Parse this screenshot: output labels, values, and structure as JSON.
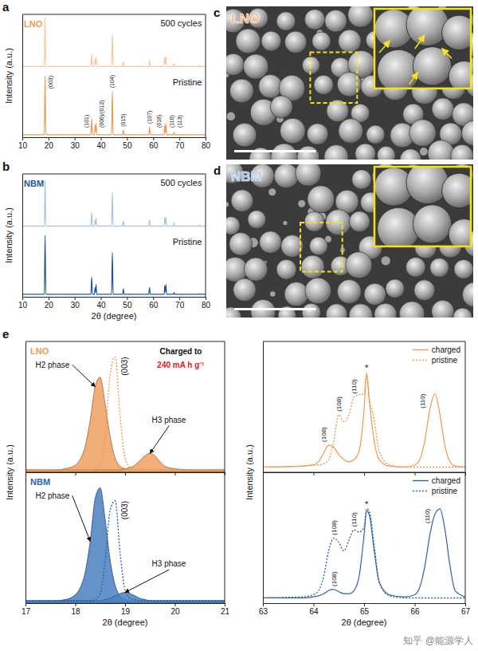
{
  "chart_data": [
    {
      "type": "line",
      "panel_label": "a",
      "title": "LNO",
      "ylabel": "Intensity (a.u.)",
      "x": [
        10,
        18.4,
        18.7,
        19.0,
        36.2,
        36.5,
        36.8,
        37.6,
        37.8,
        38.0,
        38.2,
        38.4,
        44.1,
        44.4,
        44.7,
        48.3,
        48.6,
        48.9,
        58.3,
        58.6,
        58.9,
        64.2,
        64.4,
        64.65,
        64.9,
        65.1,
        67.7,
        68.0,
        68.3,
        77.5,
        77.8,
        78.1,
        80
      ],
      "series": [
        {
          "name": "500 cycles",
          "color": "#f6c7a0",
          "values": [
            1.15,
            1.15,
            1.95,
            1.15,
            1.15,
            1.35,
            1.15,
            1.15,
            1.27,
            1.2,
            1.3,
            1.15,
            1.15,
            1.68,
            1.15,
            1.15,
            1.23,
            1.15,
            1.15,
            1.26,
            1.15,
            1.15,
            1.3,
            1.2,
            1.31,
            1.15,
            1.15,
            1.2,
            1.15,
            1.15,
            1.17,
            1.15,
            1.15
          ]
        },
        {
          "name": "Pristine",
          "color": "#ee9a52",
          "values": [
            0.04,
            0.04,
            1.0,
            0.04,
            0.04,
            0.3,
            0.04,
            0.04,
            0.2,
            0.1,
            0.22,
            0.04,
            0.04,
            0.75,
            0.04,
            0.04,
            0.12,
            0.04,
            0.04,
            0.17,
            0.04,
            0.04,
            0.2,
            0.08,
            0.21,
            0.04,
            0.04,
            0.08,
            0.04,
            0.04,
            0.05,
            0.04,
            0.04
          ]
        }
      ],
      "xlim": [
        10,
        80
      ],
      "xticks": [
        10,
        20,
        30,
        40,
        50,
        60,
        70,
        80
      ],
      "ylim": [
        0,
        2.0
      ],
      "tick_labels": "x",
      "annotations": [
        {
          "text": "(003)",
          "x": 18.7,
          "series": "Pristine"
        },
        {
          "text": "(101)",
          "x": 36.5,
          "series": "Pristine"
        },
        {
          "text": "(006)/(012)",
          "x": 38.2,
          "series": "Pristine"
        },
        {
          "text": "(104)",
          "x": 44.4,
          "series": "Pristine"
        },
        {
          "text": "(015)",
          "x": 48.6,
          "series": "Pristine"
        },
        {
          "text": "(107)",
          "x": 58.6,
          "series": "Pristine"
        },
        {
          "text": "(018)",
          "x": 64.4,
          "series": "Pristine"
        },
        {
          "text": "(110)",
          "x": 64.9,
          "series": "Pristine"
        },
        {
          "text": "(113)",
          "x": 68.0,
          "series": "Pristine"
        }
      ]
    },
    {
      "type": "line",
      "panel_label": "b",
      "title": "NBM",
      "ylabel": "Intensity (a.u.)",
      "xlabel": "2θ (degree)",
      "x": [
        10,
        18.4,
        18.7,
        19.0,
        36.2,
        36.5,
        36.8,
        37.6,
        37.8,
        38.0,
        38.2,
        38.4,
        44.1,
        44.4,
        44.7,
        48.3,
        48.6,
        48.9,
        58.3,
        58.6,
        58.9,
        64.2,
        64.4,
        64.65,
        64.9,
        65.1,
        67.7,
        68.0,
        68.3,
        77.5,
        77.8,
        78.1,
        80
      ],
      "series": [
        {
          "name": "500 cycles",
          "color": "#a7c4e2",
          "values": [
            1.15,
            1.15,
            1.9,
            1.15,
            1.15,
            1.38,
            1.15,
            1.15,
            1.25,
            1.19,
            1.28,
            1.15,
            1.15,
            1.7,
            1.15,
            1.15,
            1.24,
            1.15,
            1.15,
            1.25,
            1.15,
            1.15,
            1.28,
            1.2,
            1.3,
            1.15,
            1.15,
            1.2,
            1.15,
            1.15,
            1.17,
            1.15,
            1.15
          ]
        },
        {
          "name": "Pristine",
          "color": "#1f5591",
          "values": [
            0.04,
            0.04,
            1.0,
            0.04,
            0.04,
            0.32,
            0.04,
            0.04,
            0.15,
            0.08,
            0.2,
            0.04,
            0.04,
            0.72,
            0.04,
            0.04,
            0.13,
            0.04,
            0.04,
            0.15,
            0.04,
            0.04,
            0.18,
            0.08,
            0.2,
            0.04,
            0.04,
            0.07,
            0.04,
            0.04,
            0.05,
            0.04,
            0.04
          ]
        }
      ],
      "xlim": [
        10,
        80
      ],
      "xticks": [
        10,
        20,
        30,
        40,
        50,
        60,
        70,
        80
      ],
      "ylim": [
        0,
        2.0
      ],
      "tick_labels": "x"
    },
    {
      "type": "line",
      "panel_label": "e",
      "title": "LNO",
      "ylabel": "Intensity (a.u.)",
      "x": [
        17.0,
        17.6,
        17.8,
        18.0,
        18.1,
        18.2,
        18.3,
        18.4,
        18.5,
        18.6,
        18.7,
        18.8,
        18.9,
        19.0,
        19.1,
        19.2,
        19.3,
        19.4,
        19.5,
        19.6,
        19.7,
        19.8,
        20.0,
        20.3,
        21.0
      ],
      "series": [
        {
          "name": "H2 phase",
          "type": "area",
          "color": "#f0a060",
          "values": [
            0.02,
            0.02,
            0.03,
            0.06,
            0.11,
            0.22,
            0.44,
            0.72,
            0.8,
            0.57,
            0.3,
            0.12,
            0.05,
            0.03,
            0.02,
            0.02,
            0.02,
            0.02,
            0.02,
            0.02,
            0.02,
            0.02,
            0.02,
            0.02,
            0.02
          ]
        },
        {
          "name": "H3 phase",
          "type": "area",
          "color": "#f0a060",
          "values": [
            0.02,
            0.02,
            0.02,
            0.02,
            0.02,
            0.02,
            0.02,
            0.02,
            0.02,
            0.02,
            0.02,
            0.02,
            0.02,
            0.03,
            0.04,
            0.06,
            0.1,
            0.14,
            0.16,
            0.14,
            0.09,
            0.05,
            0.03,
            0.02,
            0.02
          ]
        },
        {
          "name": "(003)",
          "type": "line",
          "line_style": "dotted",
          "color": "#ee9a52",
          "values": [
            0.02,
            0.02,
            0.02,
            0.02,
            0.02,
            0.02,
            0.02,
            0.03,
            0.07,
            0.32,
            0.82,
            0.97,
            0.47,
            0.12,
            0.04,
            0.03,
            0.02,
            0.02,
            0.02,
            0.02,
            0.02,
            0.02,
            0.02,
            0.02,
            0.02
          ]
        }
      ],
      "xlim": [
        17,
        21
      ],
      "xticks": [
        17,
        18,
        19,
        20,
        21
      ],
      "ylim": [
        0,
        1.1
      ],
      "tick_labels": false,
      "annotations": [
        {
          "text": "Charged to"
        },
        {
          "text": "240 mA h g⁻¹"
        }
      ]
    },
    {
      "type": "line",
      "title": "NBM",
      "xlabel": "2θ (degree)",
      "x": [
        17.0,
        17.6,
        17.8,
        18.0,
        18.1,
        18.2,
        18.3,
        18.4,
        18.5,
        18.6,
        18.7,
        18.8,
        18.9,
        19.0,
        19.1,
        19.2,
        19.3,
        19.4,
        19.5,
        19.6,
        19.7,
        19.8,
        20.0,
        20.3,
        21.0
      ],
      "series": [
        {
          "name": "H2 phase",
          "type": "area",
          "color": "#4a7fc0",
          "values": [
            0.02,
            0.02,
            0.03,
            0.07,
            0.13,
            0.26,
            0.52,
            0.88,
            0.97,
            0.7,
            0.36,
            0.15,
            0.06,
            0.03,
            0.02,
            0.02,
            0.02,
            0.02,
            0.02,
            0.02,
            0.02,
            0.02,
            0.02,
            0.02,
            0.02
          ]
        },
        {
          "name": "H3 phase",
          "type": "area",
          "color": "#4a7fc0",
          "values": [
            0.02,
            0.02,
            0.02,
            0.02,
            0.02,
            0.02,
            0.02,
            0.02,
            0.02,
            0.03,
            0.04,
            0.06,
            0.08,
            0.09,
            0.08,
            0.06,
            0.04,
            0.03,
            0.02,
            0.02,
            0.02,
            0.02,
            0.02,
            0.02,
            0.02
          ]
        },
        {
          "name": "(003)",
          "type": "line",
          "line_style": "dotted",
          "color": "#2d64a8",
          "values": [
            0.02,
            0.02,
            0.02,
            0.02,
            0.02,
            0.02,
            0.02,
            0.03,
            0.08,
            0.35,
            0.78,
            0.86,
            0.42,
            0.11,
            0.04,
            0.03,
            0.02,
            0.02,
            0.02,
            0.02,
            0.02,
            0.02,
            0.02,
            0.02,
            0.02
          ]
        }
      ],
      "xlim": [
        17,
        21
      ],
      "xticks": [
        17,
        18,
        19,
        20,
        21
      ],
      "ylim": [
        0,
        1.1
      ],
      "tick_labels": "x"
    },
    {
      "type": "line",
      "ylabel": "Intensity (a.u.)",
      "x": [
        63.0,
        63.8,
        64.0,
        64.1,
        64.2,
        64.3,
        64.4,
        64.5,
        64.6,
        64.7,
        64.8,
        64.9,
        65.0,
        65.05,
        65.1,
        65.2,
        65.3,
        65.5,
        65.8,
        66.0,
        66.1,
        66.2,
        66.3,
        66.4,
        66.5,
        66.6,
        66.7,
        66.8,
        67.0
      ],
      "series": [
        {
          "name": "charged",
          "line_style": "solid",
          "color": "#ee9a52",
          "values": [
            0.05,
            0.06,
            0.07,
            0.1,
            0.18,
            0.26,
            0.24,
            0.17,
            0.12,
            0.1,
            0.12,
            0.2,
            0.6,
            0.95,
            0.7,
            0.3,
            0.12,
            0.06,
            0.05,
            0.07,
            0.12,
            0.3,
            0.6,
            0.75,
            0.55,
            0.25,
            0.1,
            0.06,
            0.05
          ]
        },
        {
          "name": "pristine",
          "line_style": "dotted",
          "color": "#ee9a52",
          "values": [
            0.05,
            0.06,
            0.07,
            0.07,
            0.08,
            0.12,
            0.3,
            0.55,
            0.48,
            0.55,
            0.72,
            0.74,
            0.75,
            0.93,
            0.72,
            0.5,
            0.2,
            0.07,
            0.05,
            0.05,
            0.05,
            0.05,
            0.05,
            0.05,
            0.05,
            0.05,
            0.05,
            0.05,
            0.05
          ]
        }
      ],
      "xlim": [
        63,
        67
      ],
      "xticks": [
        63,
        64,
        65,
        66,
        67
      ],
      "ylim": [
        0,
        1.25
      ],
      "tick_labels": false,
      "legend": "upper right",
      "annotations": [
        {
          "text": "(108)",
          "x": 64.3,
          "series": "charged"
        },
        {
          "text": "(108)",
          "x": 64.5,
          "series": "pristine"
        },
        {
          "text": "(110)",
          "x": 64.8,
          "series": "pristine"
        },
        {
          "text": "*",
          "x": 65.05,
          "series": "charged"
        },
        {
          "text": "(110)",
          "x": 66.4,
          "series": "charged"
        }
      ]
    },
    {
      "type": "line",
      "xlabel": "2θ (degree)",
      "x": [
        63.0,
        63.8,
        64.0,
        64.1,
        64.2,
        64.3,
        64.4,
        64.5,
        64.6,
        64.7,
        64.8,
        64.9,
        65.0,
        65.05,
        65.1,
        65.2,
        65.3,
        65.5,
        65.8,
        66.0,
        66.1,
        66.2,
        66.3,
        66.4,
        66.5,
        66.6,
        66.7,
        66.8,
        67.0
      ],
      "series": [
        {
          "name": "charged",
          "line_style": "solid",
          "color": "#2d64a8",
          "values": [
            0.05,
            0.05,
            0.06,
            0.07,
            0.09,
            0.12,
            0.13,
            0.11,
            0.09,
            0.09,
            0.12,
            0.25,
            0.65,
            0.88,
            0.85,
            0.5,
            0.2,
            0.08,
            0.06,
            0.08,
            0.15,
            0.35,
            0.65,
            0.85,
            0.9,
            0.7,
            0.35,
            0.12,
            0.06
          ]
        },
        {
          "name": "pristine",
          "line_style": "dotted",
          "color": "#2d64a8",
          "values": [
            0.05,
            0.06,
            0.08,
            0.12,
            0.25,
            0.5,
            0.62,
            0.58,
            0.5,
            0.6,
            0.7,
            0.68,
            0.72,
            0.9,
            0.88,
            0.55,
            0.2,
            0.07,
            0.05,
            0.05,
            0.05,
            0.05,
            0.05,
            0.05,
            0.05,
            0.05,
            0.05,
            0.05,
            0.05
          ]
        }
      ],
      "xlim": [
        63,
        67
      ],
      "xticks": [
        63,
        64,
        65,
        66,
        67
      ],
      "ylim": [
        0,
        1.25
      ],
      "tick_labels": "x",
      "legend": "upper right",
      "annotations": [
        {
          "text": "(108)",
          "x": 64.4,
          "series": "charged"
        },
        {
          "text": "(108)",
          "x": 64.4,
          "series": "pristine"
        },
        {
          "text": "(110)",
          "x": 64.8,
          "series": "pristine"
        },
        {
          "text": "*",
          "x": 65.05,
          "series": "charged"
        },
        {
          "text": "(110)",
          "x": 66.5,
          "series": "charged"
        }
      ]
    }
  ],
  "images": [
    {
      "panel_label": "c",
      "label": "LNO",
      "color": "#f3a866"
    },
    {
      "panel_label": "d",
      "label": "NBM",
      "color": "#8fb9e3"
    }
  ],
  "watermark": "知乎 @能源学人"
}
